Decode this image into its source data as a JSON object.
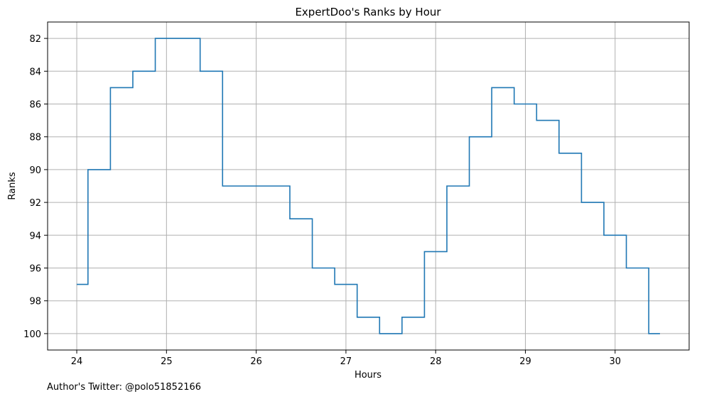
{
  "chart_data": {
    "type": "line",
    "drawstyle": "steps-mid",
    "title": "ExpertDoo's Ranks by Hour",
    "xlabel": "Hours",
    "ylabel": "Ranks",
    "xlim": [
      23.675,
      30.825
    ],
    "ylim": [
      101,
      81
    ],
    "y_inverted": true,
    "grid": true,
    "xticks": [
      24,
      25,
      26,
      27,
      28,
      29,
      30
    ],
    "yticks": [
      82,
      84,
      86,
      88,
      90,
      92,
      94,
      96,
      98,
      100
    ],
    "series": [
      {
        "color": "#1f77b4",
        "x": [
          24.0,
          24.25,
          24.5,
          24.75,
          25.0,
          25.25,
          25.5,
          25.75,
          26.0,
          26.25,
          26.5,
          26.75,
          27.0,
          27.25,
          27.5,
          27.75,
          28.0,
          28.25,
          28.5,
          28.75,
          29.0,
          29.25,
          29.5,
          29.75,
          30.0,
          30.25,
          30.5
        ],
        "y": [
          97,
          90,
          85,
          84,
          82,
          82,
          84,
          91,
          91,
          91,
          93,
          96,
          97,
          99,
          100,
          99,
          95,
          91,
          88,
          85,
          86,
          87,
          89,
          92,
          94,
          96,
          100
        ]
      }
    ]
  },
  "footnote": "Author's Twitter: @polo51852166"
}
